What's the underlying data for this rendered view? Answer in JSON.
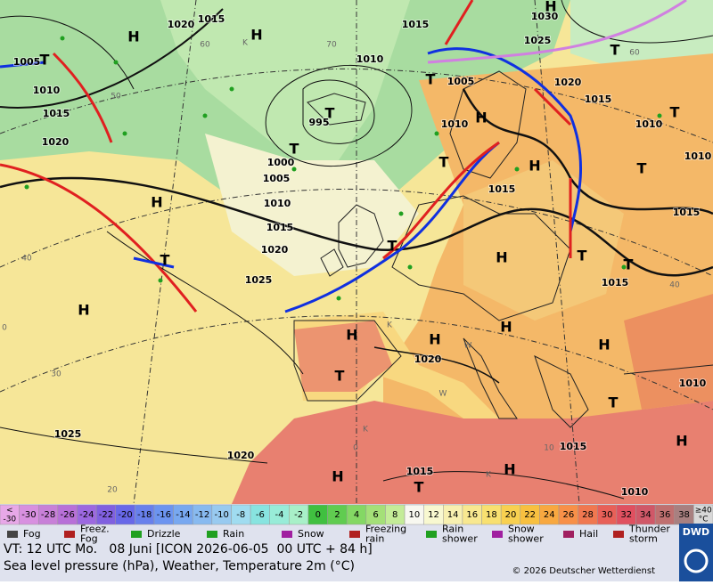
{
  "map": {
    "centers": [
      "H",
      "H",
      "H",
      "T",
      "T",
      "T",
      "T",
      "H",
      "H",
      "T",
      "T",
      "T",
      "H",
      "T",
      "T",
      "H",
      "H",
      "H",
      "H",
      "H",
      "H",
      "T",
      "T",
      "T",
      "T",
      "T",
      "H",
      "H",
      "H",
      "T"
    ],
    "isobar_labels": [
      "1015",
      "1020",
      "1030",
      "1025",
      "1015",
      "1005",
      "1010",
      "1015",
      "1020",
      "1010",
      "1005",
      "1020",
      "1015",
      "995",
      "1010",
      "1010",
      "1010",
      "1000",
      "1005",
      "1010",
      "1015",
      "1020",
      "1025",
      "1015",
      "1015",
      "1015",
      "1020",
      "1010",
      "1025",
      "1020",
      "1015",
      "1015",
      "1010"
    ],
    "grid_labels": [
      "60",
      "70",
      "50",
      "40",
      "30",
      "20",
      "0",
      "10",
      "60",
      "40",
      "0",
      "K",
      "K",
      "K",
      "W",
      "W",
      "K"
    ]
  },
  "temperature_scale": {
    "items": [
      {
        "lines": [
          "<",
          "-30"
        ],
        "color": "#e8a8e8"
      },
      {
        "lines": [
          "-30"
        ],
        "color": "#d890e0"
      },
      {
        "lines": [
          "-28"
        ],
        "color": "#c880d8"
      },
      {
        "lines": [
          "-26"
        ],
        "color": "#b870d8"
      },
      {
        "lines": [
          "-24"
        ],
        "color": "#9c68e0"
      },
      {
        "lines": [
          "-22"
        ],
        "color": "#8060e0"
      },
      {
        "lines": [
          "-20"
        ],
        "color": "#6868e8"
      },
      {
        "lines": [
          "-18"
        ],
        "color": "#6880ec"
      },
      {
        "lines": [
          "-16"
        ],
        "color": "#6c94f0"
      },
      {
        "lines": [
          "-14"
        ],
        "color": "#78a8f0"
      },
      {
        "lines": [
          "-12"
        ],
        "color": "#88baf0"
      },
      {
        "lines": [
          "-10"
        ],
        "color": "#98caf0"
      },
      {
        "lines": [
          "-8"
        ],
        "color": "#a0dcf0"
      },
      {
        "lines": [
          "-6"
        ],
        "color": "#88e4e0"
      },
      {
        "lines": [
          "-4"
        ],
        "color": "#98ecd8"
      },
      {
        "lines": [
          "-2"
        ],
        "color": "#a8f0c8"
      },
      {
        "lines": [
          "0"
        ],
        "color": "#40c040"
      },
      {
        "lines": [
          "2"
        ],
        "color": "#60cc50"
      },
      {
        "lines": [
          "4"
        ],
        "color": "#84d864"
      },
      {
        "lines": [
          "6"
        ],
        "color": "#a4e078"
      },
      {
        "lines": [
          "8"
        ],
        "color": "#c4ec98"
      },
      {
        "lines": [
          "10"
        ],
        "color": "#f8f8f0"
      },
      {
        "lines": [
          "12"
        ],
        "color": "#f8f8d0"
      },
      {
        "lines": [
          "14"
        ],
        "color": "#f8f0b0"
      },
      {
        "lines": [
          "16"
        ],
        "color": "#f8e890"
      },
      {
        "lines": [
          "18"
        ],
        "color": "#f8e070"
      },
      {
        "lines": [
          "20"
        ],
        "color": "#f8d050"
      },
      {
        "lines": [
          "22"
        ],
        "color": "#f8c040"
      },
      {
        "lines": [
          "24"
        ],
        "color": "#f8a840"
      },
      {
        "lines": [
          "26"
        ],
        "color": "#f89048"
      },
      {
        "lines": [
          "28"
        ],
        "color": "#f07850"
      },
      {
        "lines": [
          "30"
        ],
        "color": "#e86058"
      },
      {
        "lines": [
          "32"
        ],
        "color": "#e05060"
      },
      {
        "lines": [
          "34"
        ],
        "color": "#d05868"
      },
      {
        "lines": [
          "36"
        ],
        "color": "#c07070"
      },
      {
        "lines": [
          "38"
        ],
        "color": "#a88080"
      },
      {
        "lines": [
          "≥40",
          "°C"
        ],
        "color": "#d8d8d8"
      }
    ]
  },
  "legend": [
    {
      "lines": [
        "Fog"
      ]
    },
    {
      "lines": [
        "Freez.",
        "Fog"
      ]
    },
    {
      "lines": [
        "Drizzle"
      ]
    },
    {
      "lines": [
        "Rain"
      ]
    },
    {
      "lines": [
        "Snow"
      ]
    },
    {
      "lines": [
        "Freezing",
        "rain"
      ]
    },
    {
      "lines": [
        "Rain",
        "shower"
      ]
    },
    {
      "lines": [
        "Snow",
        "shower"
      ]
    },
    {
      "lines": [
        "Hail"
      ]
    },
    {
      "lines": [
        "Thunder",
        "storm"
      ]
    }
  ],
  "footer": {
    "valid_time": "VT: 12 UTC Mo.   08 Juni [ICON 2026-06-05  00 UTC + 84 h]",
    "description": "Sea level pressure (hPa), Weather, Temperature 2m (°C)",
    "copyright": "© 2026 Deutscher Wetterdienst",
    "logo": "DWD"
  }
}
